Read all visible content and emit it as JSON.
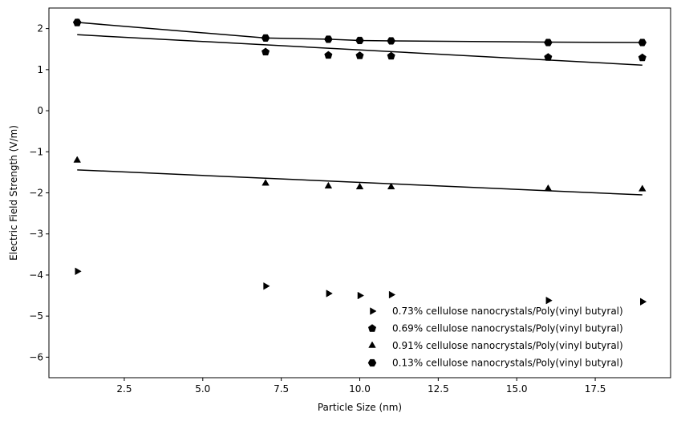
{
  "chart_data": {
    "type": "scatter",
    "title": "",
    "xlabel": "Particle Size (nm)",
    "ylabel": "Electric Field Strength (V/m)",
    "xlim": [
      0.1,
      19.9
    ],
    "ylim": [
      -6.5,
      2.5
    ],
    "xticks": [
      2.5,
      5.0,
      7.5,
      10.0,
      12.5,
      15.0,
      17.5
    ],
    "xtick_labels": [
      "2.5",
      "5.0",
      "7.5",
      "10.0",
      "12.5",
      "15.0",
      "17.5"
    ],
    "yticks": [
      -6,
      -5,
      -4,
      -3,
      -2,
      -1,
      0,
      1,
      2
    ],
    "ytick_labels": [
      "−6",
      "−5",
      "−4",
      "−3",
      "−2",
      "−1",
      "0",
      "1",
      "2"
    ],
    "grid": false,
    "legend_position": "bottom-right",
    "colors": {
      "marker": "#000000",
      "line": "#000000",
      "frame": "#000000"
    },
    "series": [
      {
        "name": "0.73% cellulose nanocrystals/Poly(vinyl butyral)",
        "marker": "triangle-right",
        "x": [
          1,
          7,
          9,
          10,
          11,
          16,
          19
        ],
        "y": [
          -3.91,
          -4.27,
          -4.45,
          -4.5,
          -4.48,
          -4.62,
          -4.65
        ],
        "fit": null
      },
      {
        "name": "0.69% cellulose nanocrystals/Poly(vinyl butyral)",
        "marker": "pentagon",
        "x": [
          1,
          7,
          9,
          10,
          11,
          16,
          19
        ],
        "y": [
          2.14,
          1.43,
          1.35,
          1.34,
          1.33,
          1.3,
          1.29
        ],
        "fit": {
          "x": [
            1,
            19
          ],
          "y": [
            1.85,
            1.11
          ]
        }
      },
      {
        "name": "0.91% cellulose nanocrystals/Poly(vinyl butyral)",
        "marker": "triangle-up",
        "x": [
          1,
          7,
          9,
          10,
          11,
          16,
          19
        ],
        "y": [
          -1.21,
          -1.77,
          -1.84,
          -1.86,
          -1.86,
          -1.9,
          -1.91
        ],
        "fit": {
          "x": [
            1,
            19
          ],
          "y": [
            -1.44,
            -2.05
          ]
        }
      },
      {
        "name": "0.13% cellulose nanocrystals/Poly(vinyl butyral)",
        "marker": "hexagon",
        "x": [
          1,
          7,
          9,
          10,
          11,
          16,
          19
        ],
        "y": [
          2.15,
          1.77,
          1.74,
          1.71,
          1.7,
          1.66,
          1.66
        ],
        "fit": {
          "x": [
            1,
            7,
            9,
            10,
            11,
            16,
            19
          ],
          "y": [
            2.15,
            1.77,
            1.74,
            1.71,
            1.7,
            1.67,
            1.66
          ]
        }
      }
    ]
  }
}
